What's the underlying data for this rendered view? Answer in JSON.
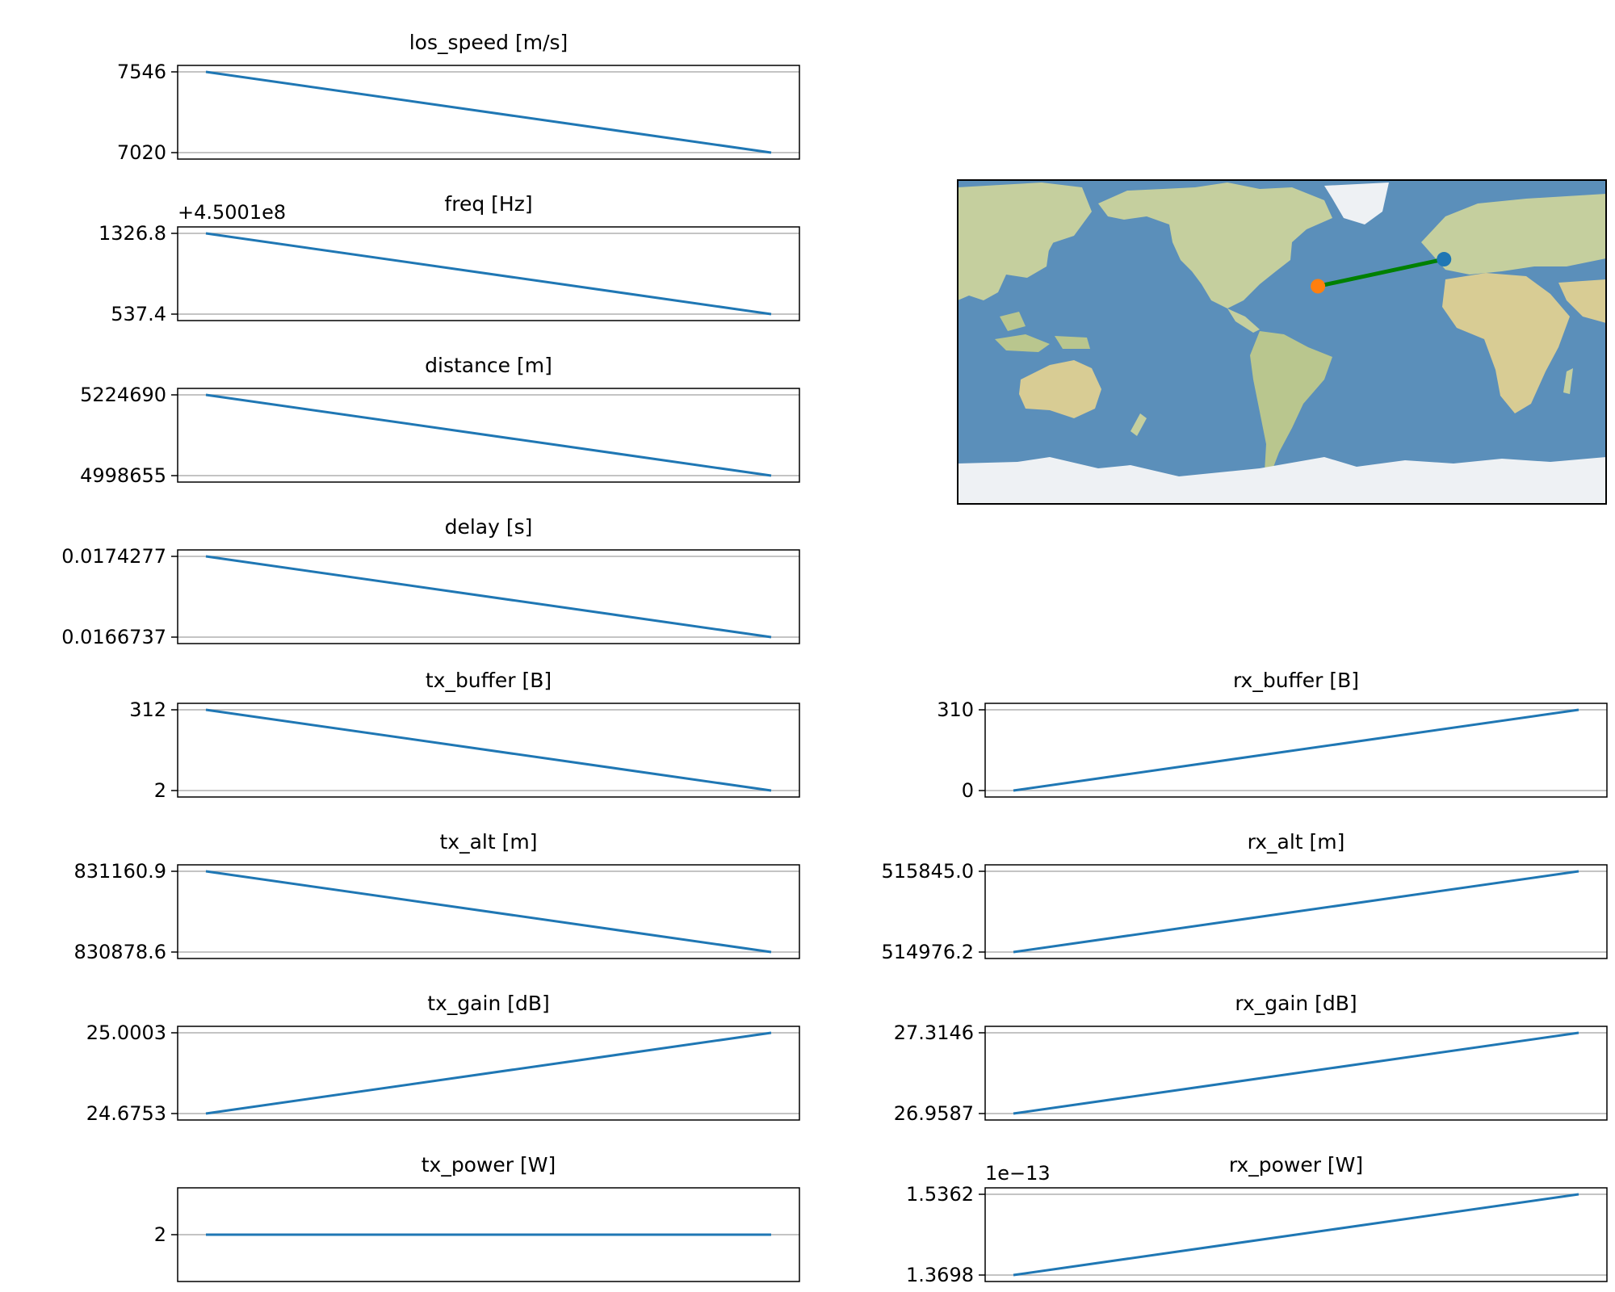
{
  "chart_data": [
    {
      "type": "line",
      "title": "los_speed [m/s]",
      "yticks": [
        "7546",
        "7020"
      ],
      "values": [
        7546,
        7020
      ],
      "ylim": [
        7020,
        7546
      ],
      "grid": "horizontal"
    },
    {
      "type": "line",
      "title": "freq [Hz]",
      "offset_label": "+4.5001e8",
      "yticks": [
        "1326.8",
        "537.4"
      ],
      "values": [
        1326.8,
        537.4
      ],
      "ylim": [
        537.4,
        1326.8
      ],
      "grid": "horizontal"
    },
    {
      "type": "line",
      "title": "distance [m]",
      "yticks": [
        "5224690",
        "4998655"
      ],
      "values": [
        5224690,
        4998655
      ],
      "ylim": [
        4998655,
        5224690
      ],
      "grid": "horizontal"
    },
    {
      "type": "line",
      "title": "delay [s]",
      "yticks": [
        "0.0174277",
        "0.0166737"
      ],
      "values": [
        0.0174277,
        0.0166737
      ],
      "ylim": [
        0.0166737,
        0.0174277
      ],
      "grid": "horizontal"
    },
    {
      "type": "line",
      "title": "tx_buffer [B]",
      "yticks": [
        "312",
        "2"
      ],
      "values": [
        312,
        2
      ],
      "ylim": [
        2,
        312
      ],
      "grid": "horizontal"
    },
    {
      "type": "line",
      "title": "tx_alt [m]",
      "yticks": [
        "831160.9",
        "830878.6"
      ],
      "values": [
        831160.9,
        830878.6
      ],
      "ylim": [
        830878.6,
        831160.9
      ],
      "grid": "horizontal"
    },
    {
      "type": "line",
      "title": "tx_gain [dB]",
      "yticks": [
        "25.0003",
        "24.6753"
      ],
      "values": [
        24.6753,
        25.0003
      ],
      "ylim": [
        24.6753,
        25.0003
      ],
      "grid": "horizontal"
    },
    {
      "type": "line",
      "title": "tx_power [W]",
      "yticks": [
        "2"
      ],
      "values": [
        2,
        2
      ],
      "ylim": [
        1,
        3
      ],
      "grid": "horizontal"
    },
    {
      "type": "line",
      "title": "rx_buffer [B]",
      "yticks": [
        "310",
        "0"
      ],
      "values": [
        0,
        310
      ],
      "ylim": [
        0,
        310
      ],
      "grid": "horizontal"
    },
    {
      "type": "line",
      "title": "rx_alt [m]",
      "yticks": [
        "515845.0",
        "514976.2"
      ],
      "values": [
        514976.2,
        515845.0
      ],
      "ylim": [
        514976.2,
        515845.0
      ],
      "grid": "horizontal"
    },
    {
      "type": "line",
      "title": "rx_gain [dB]",
      "yticks": [
        "27.3146",
        "26.9587"
      ],
      "values": [
        26.9587,
        27.3146
      ],
      "ylim": [
        26.9587,
        27.3146
      ],
      "grid": "horizontal"
    },
    {
      "type": "line",
      "title": "rx_power [W]",
      "offset_label": "1e−13",
      "yticks": [
        "1.5362",
        "1.3698"
      ],
      "values": [
        1.3698,
        1.5362
      ],
      "ylim": [
        1.3698,
        1.5362
      ],
      "grid": "horizontal"
    }
  ],
  "map": {
    "projection": "equirectangular, centered on 180° meridian",
    "track": {
      "start_marker_color": "#1f77b4",
      "end_marker_color": "#ff7f0e",
      "line_color": "#008000",
      "start_lonlat": [
        -90,
        46
      ],
      "end_lonlat": [
        -160,
        31
      ]
    }
  },
  "colors": {
    "series": "#1f77b4",
    "grid": "#b0b0b0",
    "ocean": "#5b8fba",
    "land": "#c5cf9e",
    "ice": "#eef1f4"
  }
}
